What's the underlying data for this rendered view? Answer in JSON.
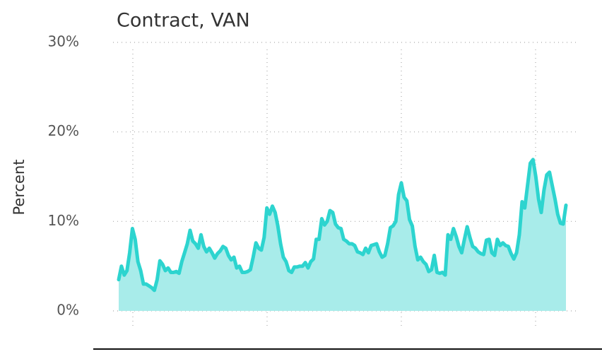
{
  "chart_data": {
    "type": "area",
    "title": "Contract, VAN",
    "ylabel": "Percent",
    "color": "#2dd4cf",
    "fill": "#a8ecea",
    "ylim": [
      0,
      30
    ],
    "yticks": [
      {
        "value": 0,
        "label": "0%"
      },
      {
        "value": 10,
        "label": "10%"
      },
      {
        "value": 20,
        "label": "20%"
      },
      {
        "value": 30,
        "label": "30%"
      }
    ],
    "grid": true,
    "values": [
      3.5,
      5,
      4,
      4.5,
      6.5,
      9.2,
      8,
      5.5,
      4.5,
      3,
      3,
      2.8,
      2.6,
      2.3,
      3.5,
      5.6,
      5.2,
      4.5,
      4.8,
      4.3,
      4.3,
      4.4,
      4.2,
      5.5,
      6.5,
      7.5,
      9,
      7.8,
      7.5,
      7,
      8.5,
      7.2,
      6.6,
      7,
      6.5,
      5.9,
      6.4,
      6.7,
      7.2,
      7,
      6.2,
      5.7,
      6,
      4.8,
      5,
      4.3,
      4.3,
      4.4,
      4.6,
      6,
      7.6,
      7,
      6.8,
      8.2,
      11.5,
      10.8,
      11.7,
      11,
      9.5,
      7.5,
      6,
      5.5,
      4.5,
      4.3,
      4.9,
      4.9,
      5,
      5,
      5.4,
      4.8,
      5.5,
      5.8,
      8,
      8,
      10.3,
      9.6,
      10,
      11.2,
      11,
      9.7,
      9.3,
      9.2,
      8,
      7.8,
      7.5,
      7.5,
      7.3,
      6.6,
      6.5,
      6.3,
      7,
      6.5,
      7.3,
      7.4,
      7.5,
      6.6,
      6,
      6.2,
      7.5,
      9.3,
      9.5,
      10,
      13,
      14.3,
      12.7,
      12.3,
      10.2,
      9.5,
      7.2,
      5.7,
      6,
      5.5,
      5.2,
      4.4,
      4.6,
      6.2,
      4.3,
      4.2,
      4.3,
      4,
      8.5,
      8,
      9.2,
      8.3,
      7.2,
      6.5,
      8,
      9.4,
      8.2,
      7.2,
      7,
      6.6,
      6.4,
      6.3,
      7.9,
      8,
      6.5,
      6.2,
      8,
      7.3,
      7.6,
      7.3,
      7.2,
      6.4,
      5.8,
      6.5,
      8.5,
      12.2,
      11.5,
      14,
      16.5,
      16.9,
      15,
      12.5,
      11,
      13.5,
      15.2,
      15.5,
      14,
      12.5,
      10.8,
      9.8,
      9.7,
      11.8
    ]
  }
}
